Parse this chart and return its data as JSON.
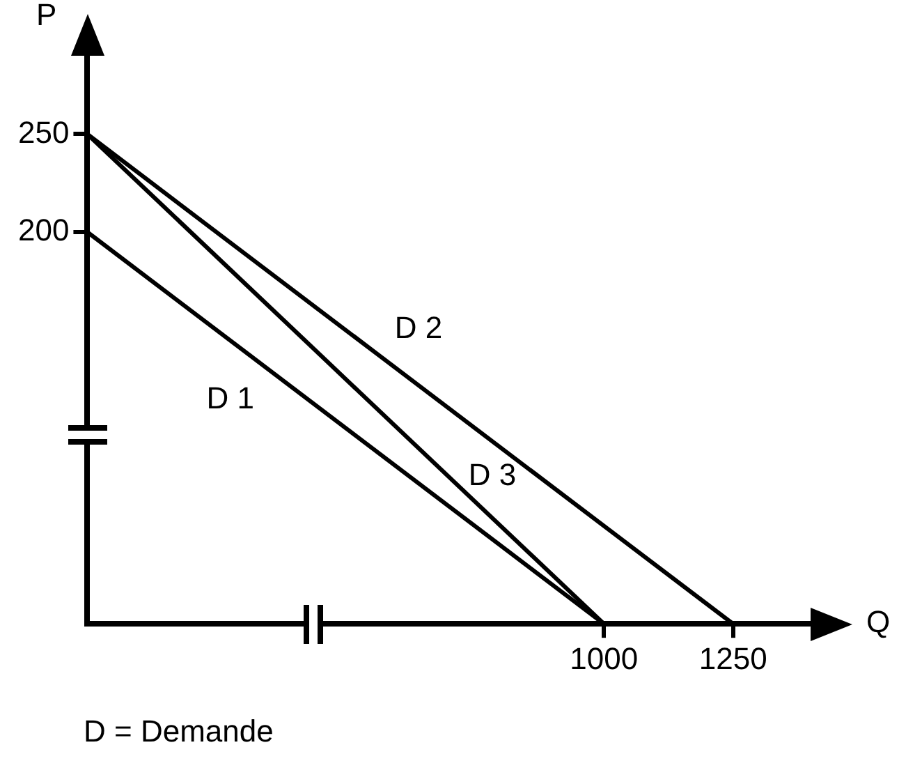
{
  "chart_data": {
    "type": "line",
    "xlabel": "Q",
    "ylabel": "P",
    "xlim": [
      0,
      1400
    ],
    "ylim": [
      0,
      290
    ],
    "xticks": [
      1000,
      1250
    ],
    "yticks": [
      200,
      250
    ],
    "series": [
      {
        "name": "D 1",
        "color": "#000000",
        "x": [
          0,
          1000
        ],
        "values": [
          200,
          0
        ]
      },
      {
        "name": "D 2",
        "color": "#000000",
        "x": [
          0,
          1250
        ],
        "values": [
          250,
          0
        ]
      },
      {
        "name": "D 3",
        "color": "#000000",
        "x": [
          0,
          1000
        ],
        "values": [
          250,
          0
        ]
      }
    ],
    "marker": "none",
    "line_style": "solid",
    "grid": false,
    "legend": false,
    "annotations": [
      "D = Demande"
    ]
  }
}
